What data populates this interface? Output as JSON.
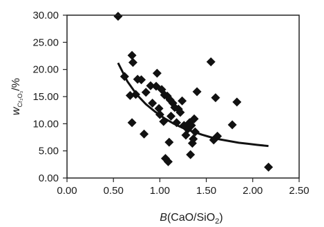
{
  "chart_data": {
    "type": "scatter",
    "xlabel": {
      "main": "B",
      "rest": "(CaO/SiO",
      "sub": "2",
      "close": ")"
    },
    "ylabel": {
      "main": "w",
      "sub": "Cr₂O₃",
      "rest": "/%"
    },
    "xlim": [
      0.0,
      2.5
    ],
    "ylim": [
      0.0,
      30.0
    ],
    "x_ticks": [
      "0.00",
      "0.50",
      "1.00",
      "1.50",
      "2.00",
      "2.50"
    ],
    "y_ticks": [
      "0.00",
      "5.00",
      "10.00",
      "15.00",
      "20.00",
      "25.00",
      "30.00"
    ],
    "grid": false,
    "legend": "none",
    "marker": "diamond",
    "marker_color": "#111111",
    "curve_color": "#111111",
    "series": [
      {
        "points": [
          [
            0.55,
            29.8
          ],
          [
            0.62,
            18.7
          ],
          [
            0.68,
            15.2
          ],
          [
            0.7,
            22.6
          ],
          [
            0.71,
            21.3
          ],
          [
            0.7,
            10.2
          ],
          [
            0.74,
            15.4
          ],
          [
            0.76,
            18.2
          ],
          [
            0.8,
            18.1
          ],
          [
            0.83,
            8.1
          ],
          [
            0.85,
            15.8
          ],
          [
            0.9,
            17.0
          ],
          [
            0.92,
            13.8
          ],
          [
            0.96,
            16.9
          ],
          [
            0.97,
            19.3
          ],
          [
            0.99,
            12.8
          ],
          [
            1.0,
            11.7
          ],
          [
            1.02,
            16.3
          ],
          [
            1.04,
            10.4
          ],
          [
            1.05,
            15.3
          ],
          [
            1.06,
            3.6
          ],
          [
            1.08,
            15.1
          ],
          [
            1.09,
            3.0
          ],
          [
            1.1,
            6.6
          ],
          [
            1.11,
            14.4
          ],
          [
            1.12,
            11.4
          ],
          [
            1.14,
            13.8
          ],
          [
            1.16,
            13.0
          ],
          [
            1.18,
            10.2
          ],
          [
            1.2,
            12.7
          ],
          [
            1.22,
            12.1
          ],
          [
            1.24,
            14.2
          ],
          [
            1.26,
            9.7
          ],
          [
            1.28,
            7.9
          ],
          [
            1.3,
            9.0
          ],
          [
            1.32,
            10.2
          ],
          [
            1.33,
            4.3
          ],
          [
            1.34,
            9.7
          ],
          [
            1.35,
            6.4
          ],
          [
            1.36,
            7.2
          ],
          [
            1.37,
            10.9
          ],
          [
            1.38,
            8.5
          ],
          [
            1.4,
            15.9
          ],
          [
            1.55,
            21.4
          ],
          [
            1.58,
            7.0
          ],
          [
            1.6,
            14.8
          ],
          [
            1.62,
            7.7
          ],
          [
            1.78,
            9.8
          ],
          [
            1.83,
            14.0
          ],
          [
            2.17,
            2.0
          ]
        ]
      }
    ],
    "trend_curve": [
      [
        0.55,
        21.2
      ],
      [
        0.65,
        17.8
      ],
      [
        0.75,
        15.4
      ],
      [
        0.85,
        13.6
      ],
      [
        0.95,
        12.2
      ],
      [
        1.05,
        11.0
      ],
      [
        1.15,
        10.0
      ],
      [
        1.25,
        9.2
      ],
      [
        1.35,
        8.6
      ],
      [
        1.45,
        8.0
      ],
      [
        1.55,
        7.5
      ],
      [
        1.65,
        7.1
      ],
      [
        1.75,
        6.8
      ],
      [
        1.85,
        6.5
      ],
      [
        1.95,
        6.3
      ],
      [
        2.05,
        6.1
      ],
      [
        2.17,
        5.9
      ]
    ]
  }
}
